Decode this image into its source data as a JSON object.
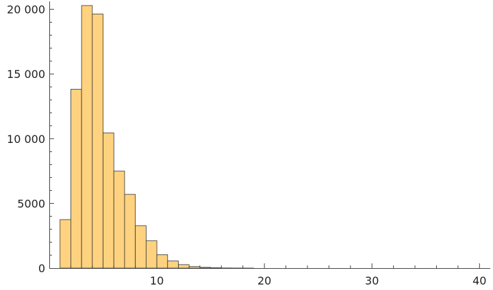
{
  "chart_data": {
    "type": "bar",
    "title": "",
    "xlabel": "",
    "ylabel": "",
    "xlim": [
      0,
      41
    ],
    "ylim": [
      0,
      20400
    ],
    "x_ticks": [
      10,
      20,
      30,
      40
    ],
    "x_tick_labels": [
      "10",
      "20",
      "30",
      "40"
    ],
    "y_ticks": [
      0,
      5000,
      10000,
      15000,
      20000
    ],
    "y_tick_labels": [
      "0",
      "5000",
      "10 000",
      "15 000",
      "20 000"
    ],
    "bin_width": 1,
    "bin_starts": [
      1,
      2,
      3,
      4,
      5,
      6,
      7,
      8,
      9,
      10,
      11,
      12,
      13,
      14,
      15,
      16,
      17,
      18
    ],
    "values": [
      3750,
      13820,
      20290,
      19630,
      10450,
      7500,
      5700,
      3280,
      2120,
      1040,
      550,
      270,
      120,
      60,
      25,
      10,
      5,
      2
    ],
    "bar_color": "#FFD27F",
    "bar_stroke": "#333333",
    "axis_color": "#444444",
    "grid": false
  }
}
